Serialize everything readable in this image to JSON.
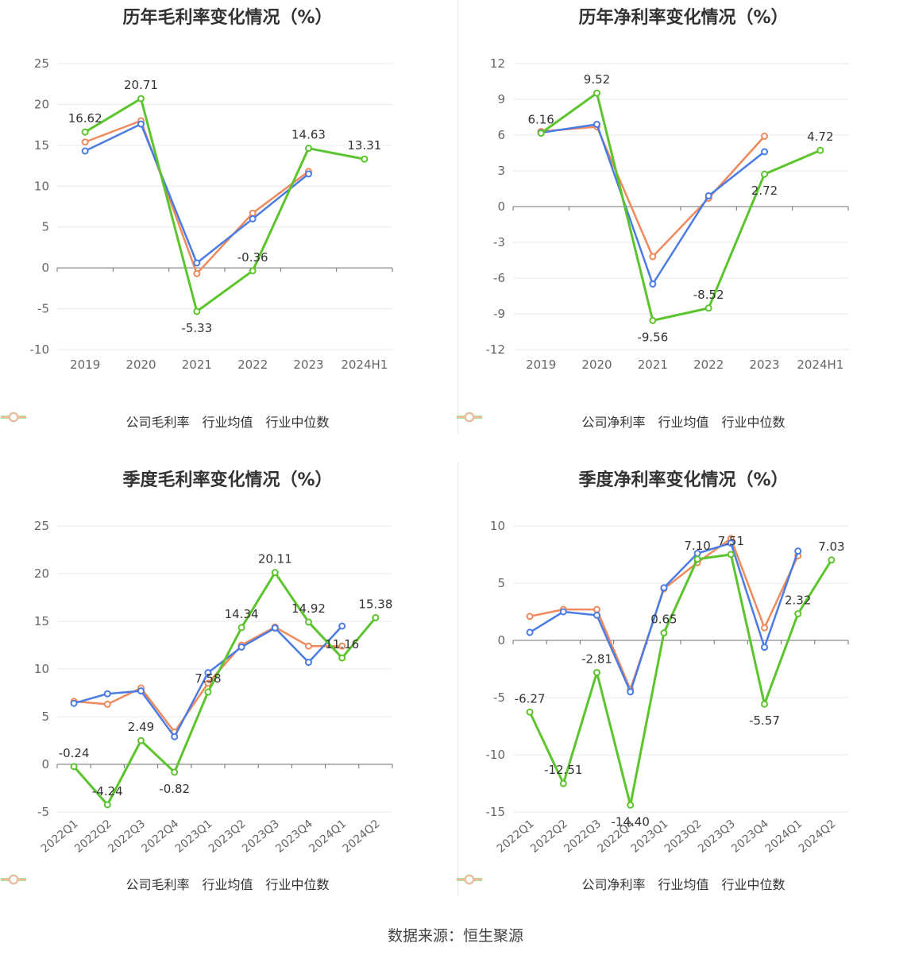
{
  "colors": {
    "company": "#5cc42c",
    "industry_avg": "#4b7be5",
    "industry_median": "#f0895c"
  },
  "legend_labels": {
    "industry_avg": "行业均值",
    "industry_median": "行业中位数"
  },
  "source": "数据来源：恒生聚源",
  "chart_data": [
    {
      "type": "line",
      "title": "历年毛利率变化情况（%）",
      "company_label": "公司毛利率",
      "categories": [
        "2019",
        "2020",
        "2021",
        "2022",
        "2023",
        "2024H1"
      ],
      "ylim": [
        -10,
        25
      ],
      "yticks": [
        -10,
        -5,
        0,
        5,
        10,
        15,
        20,
        25
      ],
      "series": [
        {
          "key": "company",
          "name": "公司毛利率",
          "values": [
            16.62,
            20.71,
            -5.33,
            -0.36,
            14.63,
            13.31
          ],
          "labels": [
            "16.62",
            "20.71",
            "-5.33",
            "-0.36",
            "14.63",
            "13.31"
          ]
        },
        {
          "key": "industry_avg",
          "name": "行业均值",
          "values": [
            14.3,
            17.6,
            0.6,
            6.0,
            11.5,
            null
          ]
        },
        {
          "key": "industry_median",
          "name": "行业中位数",
          "values": [
            15.4,
            18.0,
            -0.7,
            6.7,
            11.8,
            null
          ]
        }
      ]
    },
    {
      "type": "line",
      "title": "历年净利率变化情况（%）",
      "company_label": "公司净利率",
      "categories": [
        "2019",
        "2020",
        "2021",
        "2022",
        "2023",
        "2024H1"
      ],
      "ylim": [
        -12,
        12
      ],
      "yticks": [
        -12,
        -9,
        -6,
        -3,
        0,
        3,
        6,
        9,
        12
      ],
      "series": [
        {
          "key": "company",
          "name": "公司净利率",
          "values": [
            6.16,
            9.52,
            -9.56,
            -8.52,
            2.72,
            4.72
          ],
          "labels": [
            "6.16",
            "9.52",
            "-9.56",
            "-8.52",
            "2.72",
            "4.72"
          ]
        },
        {
          "key": "industry_avg",
          "name": "行业均值",
          "values": [
            6.2,
            6.9,
            -6.5,
            0.9,
            4.6,
            null
          ]
        },
        {
          "key": "industry_median",
          "name": "行业中位数",
          "values": [
            6.3,
            6.7,
            -4.2,
            0.7,
            5.9,
            null
          ]
        }
      ]
    },
    {
      "type": "line",
      "title": "季度毛利率变化情况（%）",
      "company_label": "公司毛利率",
      "categories": [
        "2022Q1",
        "2022Q2",
        "2022Q3",
        "2022Q4",
        "2023Q1",
        "2023Q2",
        "2023Q3",
        "2023Q4",
        "2024Q1",
        "2024Q2"
      ],
      "ylim": [
        -5,
        25
      ],
      "yticks": [
        -5,
        0,
        5,
        10,
        15,
        20,
        25
      ],
      "series": [
        {
          "key": "company",
          "name": "公司毛利率",
          "values": [
            -0.24,
            -4.24,
            2.49,
            -0.82,
            7.58,
            14.34,
            20.11,
            14.92,
            11.16,
            15.38
          ],
          "labels": [
            "-0.24",
            "-4.24",
            "2.49",
            "-0.82",
            "7.58",
            "14.34",
            "20.11",
            "14.92",
            "11.16",
            "15.38"
          ]
        },
        {
          "key": "industry_avg",
          "name": "行业均值",
          "values": [
            6.4,
            7.4,
            7.7,
            2.9,
            9.6,
            12.3,
            14.3,
            10.7,
            14.5,
            null
          ]
        },
        {
          "key": "industry_median",
          "name": "行业中位数",
          "values": [
            6.6,
            6.3,
            8.0,
            3.4,
            8.5,
            12.5,
            14.4,
            12.4,
            12.4,
            null
          ]
        }
      ]
    },
    {
      "type": "line",
      "title": "季度净利率变化情况（%）",
      "company_label": "公司净利率",
      "categories": [
        "2022Q1",
        "2022Q2",
        "2022Q3",
        "2022Q4",
        "2023Q1",
        "2023Q2",
        "2023Q3",
        "2023Q4",
        "2024Q1",
        "2024Q2"
      ],
      "ylim": [
        -15,
        10
      ],
      "yticks": [
        -15,
        -10,
        -5,
        0,
        5,
        10
      ],
      "series": [
        {
          "key": "company",
          "name": "公司净利率",
          "values": [
            -6.27,
            -12.51,
            -2.81,
            -14.4,
            0.65,
            7.1,
            7.51,
            -5.57,
            2.32,
            7.03
          ],
          "labels": [
            "-6.27",
            "-12.51",
            "-2.81",
            "-14.40",
            "0.65",
            "7.10",
            "7.51",
            "-5.57",
            "2.32",
            "7.03"
          ]
        },
        {
          "key": "industry_avg",
          "name": "行业均值",
          "values": [
            0.7,
            2.5,
            2.2,
            -4.5,
            4.6,
            7.6,
            8.5,
            -0.6,
            7.8,
            null
          ]
        },
        {
          "key": "industry_median",
          "name": "行业中位数",
          "values": [
            2.1,
            2.7,
            2.7,
            -4.3,
            4.5,
            6.8,
            8.9,
            1.1,
            7.4,
            null
          ]
        }
      ]
    }
  ]
}
